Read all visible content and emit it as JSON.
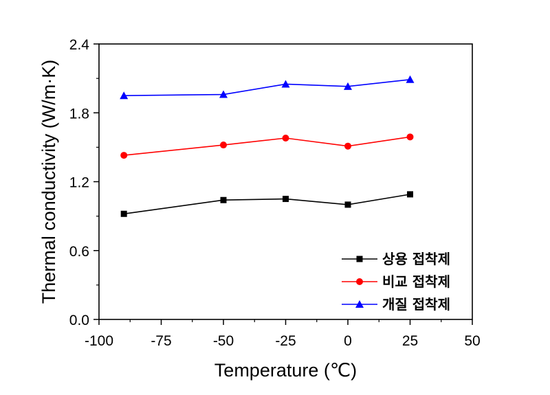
{
  "chart_data": {
    "type": "line",
    "xlabel": "Temperature (℃)",
    "ylabel": "Thermal conductivity (W/m·K)",
    "xlim": [
      -100,
      50
    ],
    "ylim": [
      0.0,
      2.4
    ],
    "xticks": [
      -100,
      -75,
      -50,
      -25,
      0,
      25,
      50
    ],
    "xtick_labels": [
      "-100",
      "-75",
      "-50",
      "-25",
      "0",
      "25",
      "50"
    ],
    "yticks": [
      0.0,
      0.6,
      1.2,
      1.8,
      2.4
    ],
    "ytick_labels": [
      "0.0",
      "0.6",
      "1.2",
      "1.8",
      "2.4"
    ],
    "x": [
      -90,
      -50,
      -25,
      0,
      25
    ],
    "grid": false,
    "legend_position": "bottom-right",
    "series": [
      {
        "name": "상용 접착제",
        "color": "#000000",
        "marker": "square",
        "values": [
          0.92,
          1.04,
          1.05,
          1.0,
          1.09
        ]
      },
      {
        "name": "비교 접착제",
        "color": "#ff0000",
        "marker": "circle",
        "values": [
          1.43,
          1.52,
          1.58,
          1.51,
          1.59
        ]
      },
      {
        "name": "개질 접착제",
        "color": "#0000ff",
        "marker": "triangle",
        "values": [
          1.95,
          1.96,
          2.05,
          2.03,
          2.09
        ]
      }
    ]
  }
}
